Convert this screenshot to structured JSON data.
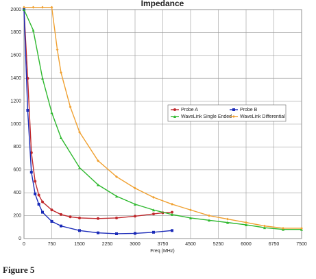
{
  "chart_data": {
    "type": "line",
    "title": "Impedance",
    "x_label": "Freq (MHz)",
    "xlim": [
      0,
      7500
    ],
    "xticks": [
      0,
      750,
      1500,
      2250,
      3000,
      3750,
      4500,
      5250,
      6000,
      6750,
      7500
    ],
    "ylim": [
      0,
      2000
    ],
    "yticks": [
      0,
      200,
      400,
      600,
      800,
      1000,
      1200,
      1400,
      1600,
      1800,
      2000
    ],
    "grid": true,
    "legend": "right",
    "series": [
      {
        "name": "Probe A",
        "color": "#c0282c",
        "marker": "circle",
        "x": [
          0,
          100,
          200,
          300,
          400,
          500,
          750,
          1000,
          1250,
          1500,
          2000,
          2500,
          3000,
          3500,
          3750,
          4000
        ],
        "values": [
          2000,
          1400,
          750,
          500,
          380,
          320,
          250,
          210,
          190,
          180,
          175,
          180,
          195,
          215,
          225,
          230
        ]
      },
      {
        "name": "Probe B",
        "color": "#1a2ab8",
        "marker": "square",
        "x": [
          0,
          100,
          200,
          300,
          400,
          500,
          750,
          1000,
          1500,
          2000,
          2500,
          3000,
          3500,
          4000
        ],
        "values": [
          2000,
          1120,
          580,
          390,
          300,
          230,
          150,
          110,
          70,
          50,
          42,
          45,
          55,
          70
        ]
      },
      {
        "name": "WaveLink Single Ended",
        "color": "#2eb82e",
        "marker": "triangle",
        "x": [
          0,
          250,
          500,
          750,
          1000,
          1500,
          2000,
          2500,
          3000,
          3500,
          4000,
          4500,
          5000,
          5500,
          6000,
          6500,
          7000,
          7500
        ],
        "values": [
          2000,
          1820,
          1400,
          1100,
          880,
          620,
          470,
          370,
          300,
          250,
          210,
          180,
          160,
          140,
          120,
          95,
          80,
          80
        ]
      },
      {
        "name": "WaveLink Differential",
        "color": "#f0a030",
        "marker": "diamond",
        "x": [
          0,
          250,
          500,
          750,
          900,
          1000,
          1250,
          1500,
          2000,
          2500,
          3000,
          3500,
          4000,
          4500,
          5000,
          5500,
          6000,
          6500,
          7000,
          7500
        ],
        "values": [
          2020,
          2020,
          2020,
          2020,
          1650,
          1450,
          1150,
          930,
          680,
          540,
          440,
          360,
          300,
          250,
          200,
          170,
          140,
          110,
          90,
          90
        ]
      }
    ]
  },
  "caption": "Figure 5"
}
